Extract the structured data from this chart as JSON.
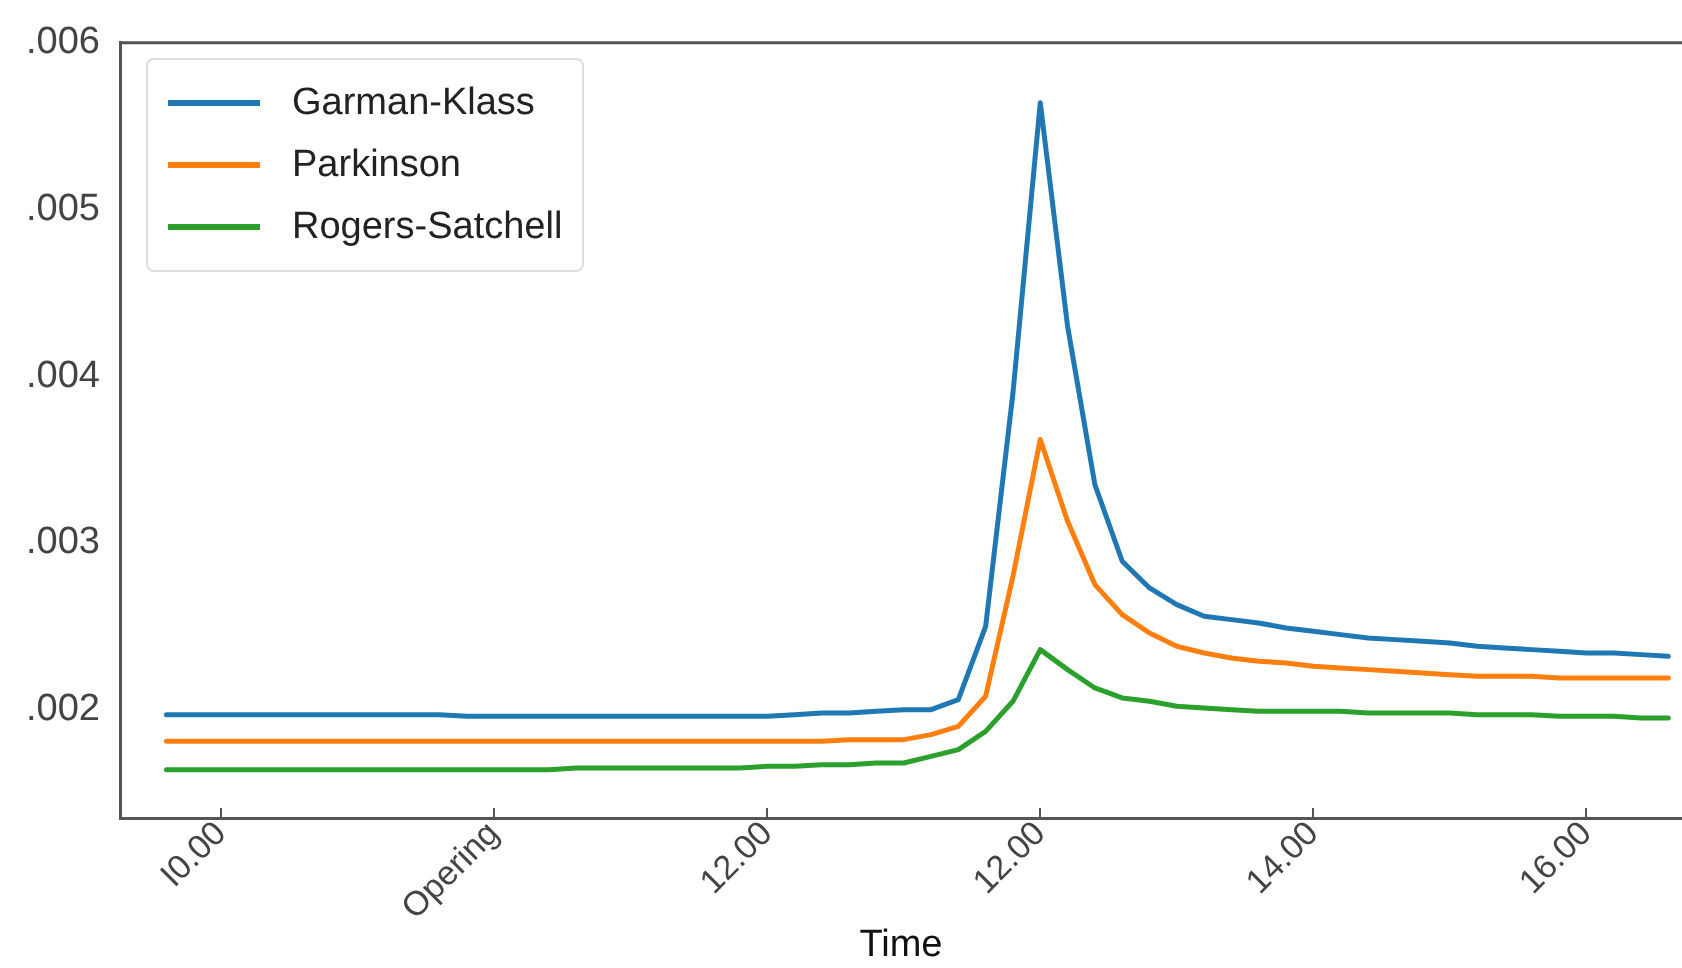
{
  "chart_data": {
    "type": "line",
    "xlabel": "Time",
    "categories": [
      null,
      null,
      "I0.00",
      null,
      null,
      null,
      null,
      null,
      null,
      null,
      null,
      null,
      "Opering",
      null,
      null,
      null,
      null,
      null,
      null,
      null,
      null,
      null,
      "12.00",
      null,
      null,
      null,
      null,
      null,
      null,
      null,
      null,
      null,
      "12.00",
      null,
      null,
      null,
      null,
      null,
      null,
      null,
      null,
      null,
      "14.00",
      null,
      null,
      null,
      null,
      null,
      null,
      null,
      null,
      null,
      "16.00",
      null,
      null,
      null
    ],
    "ylim": [
      0.00135,
      0.006
    ],
    "yticks": [
      {
        "value": 0.002,
        "label": ".002"
      },
      {
        "value": 0.003,
        "label": ".003"
      },
      {
        "value": 0.004,
        "label": ".004"
      },
      {
        "value": 0.005,
        "label": ".005"
      },
      {
        "value": 0.006,
        "label": ".006"
      }
    ],
    "grid": false,
    "legend": "top left",
    "marker": "none",
    "line_style": "solid",
    "series": [
      {
        "name": "Garman-Klass",
        "color": "#1f77b4",
        "values": [
          0.00197,
          0.00197,
          0.00197,
          0.00197,
          0.00197,
          0.00197,
          0.00197,
          0.00197,
          0.00197,
          0.00197,
          0.00197,
          0.00196,
          0.00196,
          0.00196,
          0.00196,
          0.00196,
          0.00196,
          0.00196,
          0.00196,
          0.00196,
          0.00196,
          0.00196,
          0.00196,
          0.00197,
          0.00198,
          0.00198,
          0.00199,
          0.002,
          0.002,
          0.00206,
          0.0025,
          0.0039,
          0.00564,
          0.0043,
          0.00335,
          0.00289,
          0.00273,
          0.00263,
          0.00256,
          0.00254,
          0.00252,
          0.00249,
          0.00247,
          0.00245,
          0.00243,
          0.00242,
          0.00241,
          0.0024,
          0.00238,
          0.00237,
          0.00236,
          0.00235,
          0.00234,
          0.00234,
          0.00233,
          0.00232
        ]
      },
      {
        "name": "Parkinson",
        "color": "#ff7f0e",
        "values": [
          0.00181,
          0.00181,
          0.00181,
          0.00181,
          0.00181,
          0.00181,
          0.00181,
          0.00181,
          0.00181,
          0.00181,
          0.00181,
          0.00181,
          0.00181,
          0.00181,
          0.00181,
          0.00181,
          0.00181,
          0.00181,
          0.00181,
          0.00181,
          0.00181,
          0.00181,
          0.00181,
          0.00181,
          0.00181,
          0.00182,
          0.00182,
          0.00182,
          0.00185,
          0.0019,
          0.00208,
          0.0028,
          0.00362,
          0.00313,
          0.00275,
          0.00257,
          0.00246,
          0.00238,
          0.00234,
          0.00231,
          0.00229,
          0.00228,
          0.00226,
          0.00225,
          0.00224,
          0.00223,
          0.00222,
          0.00221,
          0.0022,
          0.0022,
          0.0022,
          0.00219,
          0.00219,
          0.00219,
          0.00219,
          0.00219
        ]
      },
      {
        "name": "Rogers-Satchell",
        "color": "#2ca02c",
        "values": [
          0.00164,
          0.00164,
          0.00164,
          0.00164,
          0.00164,
          0.00164,
          0.00164,
          0.00164,
          0.00164,
          0.00164,
          0.00164,
          0.00164,
          0.00164,
          0.00164,
          0.00164,
          0.00165,
          0.00165,
          0.00165,
          0.00165,
          0.00165,
          0.00165,
          0.00165,
          0.00166,
          0.00166,
          0.00167,
          0.00167,
          0.00168,
          0.00168,
          0.00172,
          0.00176,
          0.00187,
          0.00205,
          0.00236,
          0.00224,
          0.00213,
          0.00207,
          0.00205,
          0.00202,
          0.00201,
          0.002,
          0.00199,
          0.00199,
          0.00199,
          0.00199,
          0.00198,
          0.00198,
          0.00198,
          0.00198,
          0.00197,
          0.00197,
          0.00197,
          0.00196,
          0.00196,
          0.00196,
          0.00195,
          0.00195
        ]
      }
    ]
  }
}
